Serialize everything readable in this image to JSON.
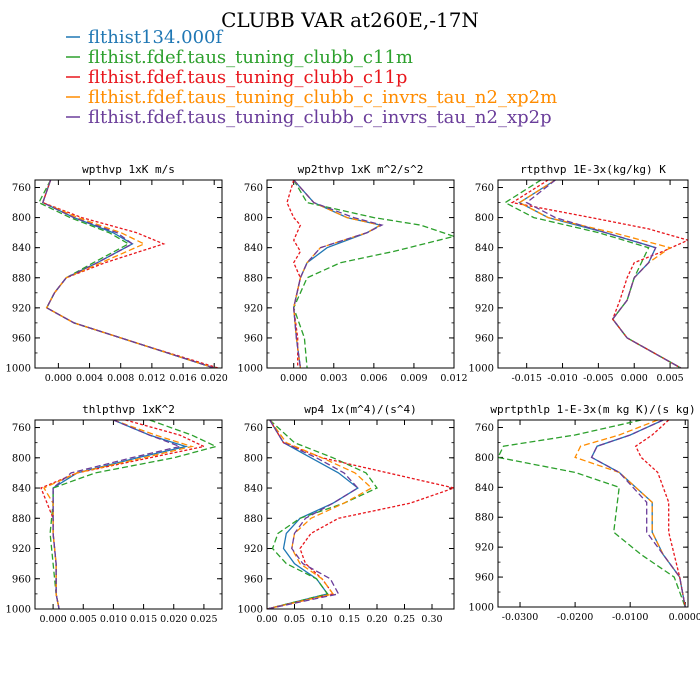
{
  "title": "CLUBB VAR at260E,-17N",
  "legend": [
    {
      "label": "flthist134.000f",
      "color": "#1f77b4"
    },
    {
      "label": "flthist.fdef.taus_tuning_clubb_c11m",
      "color": "#2ca02c"
    },
    {
      "label": "flthist.fdef.taus_tuning_clubb_c11p",
      "color": "#e8161c"
    },
    {
      "label": "flthist.fdef.taus_tuning_clubb_c_invrs_tau_n2_xp2m",
      "color": "#ff8c00"
    },
    {
      "label": "flthist.fdef.taus_tuning_clubb_c_invrs_tau_n2_xp2p",
      "color": "#6a3d9a"
    }
  ],
  "chart_data": [
    {
      "type": "line",
      "title": "wpthvp  1xK m/s",
      "xlim": [
        -0.003,
        0.021
      ],
      "ylim": [
        1000,
        750
      ],
      "xticks": [
        "0.000",
        "0.004",
        "0.008",
        "0.012",
        "0.016",
        "0.020"
      ],
      "xtick_values": [
        0,
        0.004,
        0.008,
        0.012,
        0.016,
        0.02
      ],
      "yticks": [
        760,
        800,
        840,
        880,
        920,
        960,
        1000
      ],
      "series": [
        {
          "p": [
            750,
            780,
            800,
            820,
            835,
            860,
            880,
            900,
            920,
            940,
            970,
            1000
          ],
          "x": [
            -0.001,
            -0.002,
            0.002,
            0.007,
            0.0095,
            0.005,
            0.001,
            -0.0005,
            -0.0015,
            0.002,
            0.011,
            0.02
          ]
        },
        {
          "p": [
            750,
            780,
            800,
            820,
            835,
            860,
            880,
            900,
            920,
            940,
            970,
            1000
          ],
          "x": [
            -0.001,
            -0.0025,
            0.0015,
            0.0065,
            0.009,
            0.0045,
            0.001,
            -0.0005,
            -0.0015,
            0.002,
            0.011,
            0.02
          ]
        },
        {
          "p": [
            750,
            780,
            800,
            820,
            835,
            860,
            880,
            900,
            920,
            940,
            970,
            1000
          ],
          "x": [
            -0.001,
            -0.002,
            0.003,
            0.01,
            0.0135,
            0.006,
            0.001,
            -0.0005,
            -0.0015,
            0.002,
            0.011,
            0.0205
          ]
        },
        {
          "p": [
            750,
            780,
            800,
            820,
            835,
            860,
            880,
            900,
            920,
            940,
            970,
            1000
          ],
          "x": [
            -0.001,
            -0.002,
            0.0025,
            0.008,
            0.011,
            0.0055,
            0.001,
            -0.0005,
            -0.0015,
            0.002,
            0.011,
            0.02
          ]
        },
        {
          "p": [
            750,
            780,
            800,
            820,
            835,
            860,
            880,
            900,
            920,
            940,
            970,
            1000
          ],
          "x": [
            -0.001,
            -0.002,
            0.002,
            0.0075,
            0.0095,
            0.005,
            0.001,
            -0.0005,
            -0.0015,
            0.002,
            0.011,
            0.02
          ]
        }
      ]
    },
    {
      "type": "line",
      "title": "wp2thvp  1xK m^2/s^2",
      "xlim": [
        -0.002,
        0.012
      ],
      "ylim": [
        1000,
        750
      ],
      "xticks": [
        "0.000",
        "0.003",
        "0.006",
        "0.009",
        "0.012"
      ],
      "xtick_values": [
        0,
        0.003,
        0.006,
        0.009,
        0.012
      ],
      "yticks": [
        760,
        800,
        840,
        880,
        920,
        960,
        1000
      ],
      "series": [
        {
          "p": [
            750,
            780,
            800,
            810,
            820,
            840,
            860,
            880,
            920,
            960,
            1000
          ],
          "x": [
            0.0,
            0.0015,
            0.004,
            0.0065,
            0.0055,
            0.0025,
            0.001,
            0.0005,
            0.0,
            0.0002,
            0.0005
          ]
        },
        {
          "p": [
            750,
            780,
            800,
            810,
            825,
            845,
            860,
            880,
            920,
            960,
            1000
          ],
          "x": [
            0.0,
            0.001,
            0.006,
            0.0095,
            0.012,
            0.0075,
            0.0035,
            0.001,
            0.0,
            0.0008,
            0.001
          ]
        },
        {
          "p": [
            750,
            780,
            800,
            810,
            830,
            845,
            860,
            880,
            920,
            960,
            1000
          ],
          "x": [
            0.0,
            -0.0005,
            0.0,
            0.0005,
            0.0,
            0.0005,
            0.0,
            0.0005,
            0.0,
            0.0003,
            0.0003
          ]
        },
        {
          "p": [
            750,
            780,
            800,
            810,
            820,
            840,
            860,
            880,
            920,
            960,
            1000
          ],
          "x": [
            0.0,
            0.0015,
            0.004,
            0.0065,
            0.0055,
            0.002,
            0.001,
            0.0005,
            0.0,
            0.0002,
            0.0005
          ]
        },
        {
          "p": [
            750,
            780,
            800,
            810,
            820,
            840,
            860,
            880,
            920,
            960,
            1000
          ],
          "x": [
            0.0,
            0.0015,
            0.0045,
            0.0066,
            0.0055,
            0.002,
            0.001,
            0.0005,
            0.0,
            0.0002,
            0.0005
          ]
        }
      ]
    },
    {
      "type": "line",
      "title": "rtpthvp  1E-3x(kg/kg) K",
      "xlim": [
        -0.019,
        0.0075
      ],
      "ylim": [
        1000,
        750
      ],
      "xticks": [
        "-0.015",
        "-0.010",
        "-0.005",
        "0.000",
        "0.005"
      ],
      "xtick_values": [
        -0.015,
        -0.01,
        -0.005,
        0,
        0.005
      ],
      "yticks": [
        760,
        800,
        840,
        880,
        920,
        960,
        1000
      ],
      "series": [
        {
          "p": [
            750,
            780,
            800,
            820,
            840,
            860,
            880,
            910,
            935,
            960,
            1000
          ],
          "x": [
            -0.011,
            -0.016,
            -0.012,
            -0.004,
            0.003,
            0.002,
            0.0,
            -0.001,
            -0.003,
            -0.001,
            0.0065
          ]
        },
        {
          "p": [
            750,
            780,
            800,
            820,
            840,
            860,
            880,
            910,
            935,
            960,
            1000
          ],
          "x": [
            -0.013,
            -0.018,
            -0.014,
            -0.005,
            0.002,
            0.001,
            0.0,
            -0.001,
            -0.003,
            -0.001,
            0.0065
          ]
        },
        {
          "p": [
            750,
            780,
            800,
            815,
            830,
            845,
            860,
            880,
            910,
            935,
            960,
            1000
          ],
          "x": [
            -0.012,
            -0.017,
            -0.006,
            0.002,
            0.0075,
            0.004,
            0.0,
            -0.001,
            -0.002,
            -0.003,
            -0.001,
            0.0065
          ]
        },
        {
          "p": [
            750,
            780,
            800,
            820,
            840,
            860,
            880,
            910,
            935,
            960,
            1000
          ],
          "x": [
            -0.011,
            -0.016,
            -0.012,
            -0.003,
            0.005,
            0.002,
            0.0,
            -0.001,
            -0.003,
            -0.001,
            0.0065
          ]
        },
        {
          "p": [
            750,
            780,
            800,
            820,
            840,
            860,
            880,
            910,
            935,
            960,
            1000
          ],
          "x": [
            -0.011,
            -0.015,
            -0.011,
            -0.004,
            0.003,
            0.002,
            0.0,
            -0.001,
            -0.003,
            -0.001,
            0.0065
          ]
        }
      ]
    },
    {
      "type": "line",
      "title": "thlpthvp  1xK^2",
      "xlim": [
        -0.003,
        0.028
      ],
      "ylim": [
        1000,
        750
      ],
      "xticks": [
        "0.000",
        "0.005",
        "0.010",
        "0.015",
        "0.020",
        "0.025"
      ],
      "xtick_values": [
        0,
        0.005,
        0.01,
        0.015,
        0.02,
        0.025
      ],
      "yticks": [
        760,
        800,
        840,
        880,
        920,
        960,
        1000
      ],
      "series": [
        {
          "p": [
            750,
            770,
            785,
            800,
            820,
            840,
            860,
            900,
            940,
            980,
            1000
          ],
          "x": [
            0.01,
            0.016,
            0.022,
            0.014,
            0.004,
            0.0,
            0.0,
            0.0,
            0.0005,
            0.0005,
            0.001
          ]
        },
        {
          "p": [
            750,
            770,
            785,
            800,
            820,
            840,
            860,
            900,
            940,
            980,
            1000
          ],
          "x": [
            0.016,
            0.023,
            0.027,
            0.02,
            0.007,
            0.0,
            0.0,
            -0.0005,
            0.0,
            0.0005,
            0.001
          ]
        },
        {
          "p": [
            750,
            770,
            785,
            800,
            820,
            840,
            860,
            880,
            900,
            940,
            980,
            1000
          ],
          "x": [
            0.012,
            0.021,
            0.025,
            0.016,
            0.004,
            -0.002,
            -0.001,
            0.0,
            0.0,
            0.0005,
            0.0005,
            0.001
          ]
        },
        {
          "p": [
            750,
            770,
            785,
            800,
            820,
            840,
            860,
            880,
            900,
            940,
            980,
            1000
          ],
          "x": [
            0.01,
            0.017,
            0.023,
            0.015,
            0.004,
            -0.0015,
            0.0,
            0.0,
            0.0,
            0.0005,
            0.0005,
            0.001
          ]
        },
        {
          "p": [
            750,
            770,
            785,
            800,
            820,
            840,
            860,
            900,
            940,
            980,
            1000
          ],
          "x": [
            0.01,
            0.016,
            0.021,
            0.013,
            0.003,
            0.0,
            0.0,
            0.0,
            0.0005,
            0.0005,
            0.001
          ]
        }
      ]
    },
    {
      "type": "line",
      "title": "wp4  1x(m^4)/(s^4)",
      "xlim": [
        0,
        0.34
      ],
      "ylim": [
        1000,
        750
      ],
      "xticks": [
        "0.00",
        "0.05",
        "0.10",
        "0.15",
        "0.20",
        "0.25",
        "0.30"
      ],
      "xtick_values": [
        0,
        0.05,
        0.1,
        0.15,
        0.2,
        0.25,
        0.3
      ],
      "yticks": [
        760,
        800,
        840,
        880,
        920,
        960,
        1000
      ],
      "series": [
        {
          "p": [
            750,
            780,
            800,
            820,
            840,
            860,
            880,
            900,
            920,
            940,
            960,
            980,
            1000
          ],
          "x": [
            0.005,
            0.03,
            0.08,
            0.13,
            0.165,
            0.12,
            0.06,
            0.035,
            0.03,
            0.05,
            0.09,
            0.11,
            0.0
          ]
        },
        {
          "p": [
            750,
            780,
            800,
            820,
            840,
            860,
            880,
            900,
            920,
            940,
            960,
            980,
            1000
          ],
          "x": [
            0.005,
            0.05,
            0.12,
            0.18,
            0.2,
            0.14,
            0.06,
            0.02,
            0.01,
            0.035,
            0.09,
            0.11,
            0.0
          ]
        },
        {
          "p": [
            750,
            780,
            800,
            820,
            840,
            860,
            880,
            900,
            920,
            940,
            960,
            980,
            1000
          ],
          "x": [
            0.005,
            0.03,
            0.1,
            0.22,
            0.34,
            0.26,
            0.13,
            0.08,
            0.06,
            0.07,
            0.1,
            0.12,
            0.0
          ]
        },
        {
          "p": [
            750,
            780,
            800,
            820,
            840,
            860,
            880,
            900,
            920,
            940,
            960,
            980,
            1000
          ],
          "x": [
            0.005,
            0.035,
            0.1,
            0.16,
            0.19,
            0.14,
            0.08,
            0.05,
            0.045,
            0.06,
            0.1,
            0.12,
            0.0
          ]
        },
        {
          "p": [
            750,
            780,
            800,
            820,
            840,
            860,
            880,
            900,
            920,
            940,
            960,
            980,
            1000
          ],
          "x": [
            0.005,
            0.03,
            0.09,
            0.14,
            0.165,
            0.12,
            0.07,
            0.05,
            0.045,
            0.065,
            0.115,
            0.13,
            0.0
          ]
        }
      ]
    },
    {
      "type": "line",
      "title": "wprtpthlp  1-E-3x(m kg K)/(s kg)",
      "xlim": [
        -0.034,
        0.0005
      ],
      "ylim": [
        1000,
        750
      ],
      "xticks": [
        "-0.0300",
        "-0.0200",
        "-0.0100",
        "0.0000"
      ],
      "xtick_values": [
        -0.03,
        -0.02,
        -0.01,
        0
      ],
      "yticks": [
        760,
        800,
        840,
        880,
        920,
        960,
        1000
      ],
      "series": [
        {
          "p": [
            750,
            770,
            785,
            800,
            820,
            860,
            900,
            930,
            960,
            1000
          ],
          "x": [
            -0.004,
            -0.01,
            -0.016,
            -0.017,
            -0.012,
            -0.006,
            -0.006,
            -0.004,
            -0.001,
            0.0
          ]
        },
        {
          "p": [
            750,
            770,
            785,
            800,
            820,
            840,
            900,
            930,
            960,
            1000
          ],
          "x": [
            -0.008,
            -0.02,
            -0.033,
            -0.034,
            -0.02,
            -0.012,
            -0.013,
            -0.008,
            -0.002,
            0.0
          ]
        },
        {
          "p": [
            750,
            770,
            785,
            800,
            820,
            860,
            900,
            930,
            960,
            1000
          ],
          "x": [
            -0.003,
            -0.006,
            -0.009,
            -0.008,
            -0.005,
            -0.003,
            -0.003,
            -0.002,
            -0.001,
            0.0
          ]
        },
        {
          "p": [
            750,
            770,
            785,
            800,
            820,
            860,
            900,
            930,
            960,
            1000
          ],
          "x": [
            -0.005,
            -0.012,
            -0.019,
            -0.02,
            -0.012,
            -0.006,
            -0.006,
            -0.004,
            -0.001,
            0.0
          ]
        },
        {
          "p": [
            750,
            770,
            785,
            800,
            820,
            860,
            900,
            930,
            960,
            1000
          ],
          "x": [
            -0.004,
            -0.01,
            -0.016,
            -0.017,
            -0.012,
            -0.007,
            -0.007,
            -0.004,
            -0.001,
            0.0
          ]
        }
      ]
    }
  ]
}
